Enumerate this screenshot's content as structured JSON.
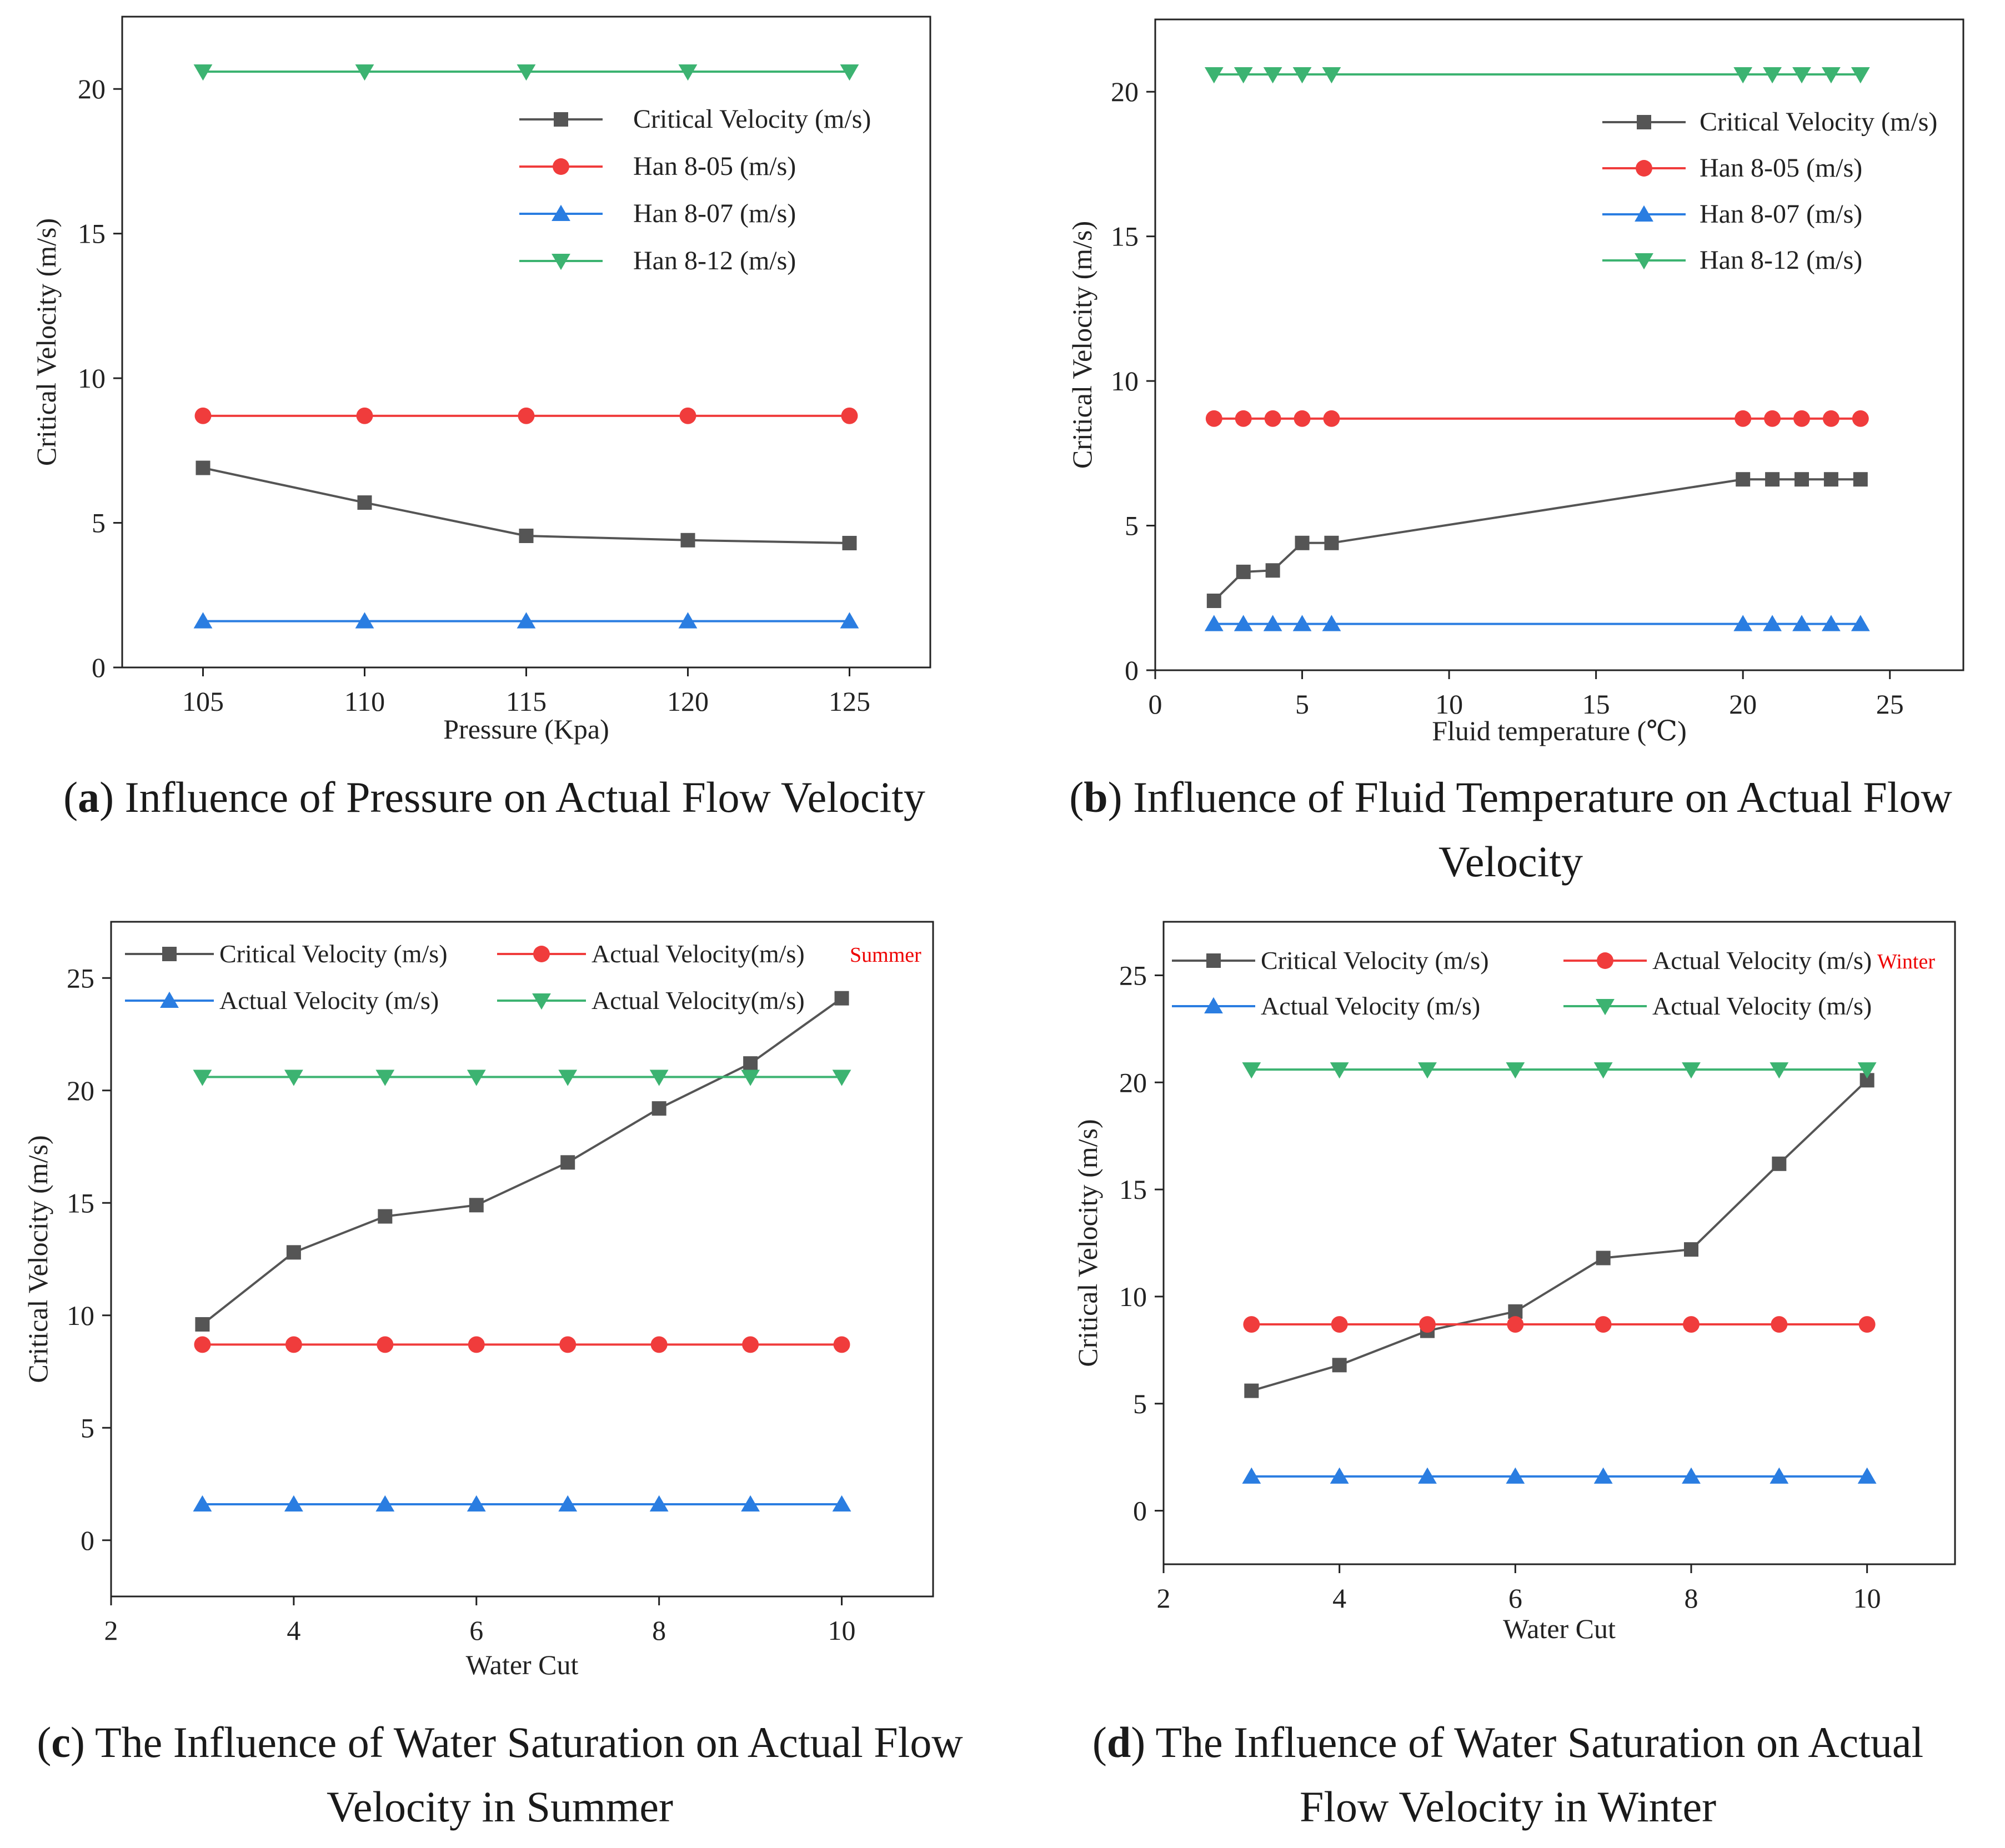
{
  "captions": [
    {
      "letter": "a",
      "line1": " Influence of Pressure on Actual Flow Velocity",
      "line2": ""
    },
    {
      "letter": "b",
      "line1": " Influence of Fluid Temperature on Actual Flow",
      "line2": "Velocity"
    },
    {
      "letter": "c",
      "line1": " The Influence of Water Saturation on Actual Flow",
      "line2": "Velocity in Summer"
    },
    {
      "letter": "d",
      "line1": " The Influence of Water Saturation on Actual",
      "line2": "Flow Velocity in Winter"
    }
  ],
  "colors": {
    "critical": "#555555",
    "han05": "#f03c3c",
    "han07": "#2a7de1",
    "han12": "#3cb371",
    "note": "#ee0000"
  },
  "chart_data": [
    {
      "type": "line",
      "xlabel": "Pressure (Kpa)",
      "ylabel": "Critical Velocity (m/s)",
      "xlim": [
        102.5,
        127.5
      ],
      "ylim": [
        0,
        22.5
      ],
      "xticks": [
        105,
        110,
        115,
        120,
        125
      ],
      "yticks": [
        0,
        5,
        10,
        15,
        20
      ],
      "legend": "top-right, single column",
      "note": "",
      "series": [
        {
          "name": "Critical Velocity (m/s)",
          "marker": "square",
          "color": "#555555",
          "x": [
            105,
            110,
            115,
            120,
            125
          ],
          "y": [
            6.9,
            5.7,
            4.55,
            4.4,
            4.3
          ]
        },
        {
          "name": "Han 8-05 (m/s)",
          "marker": "circle",
          "color": "#f03c3c",
          "x": [
            105,
            110,
            115,
            120,
            125
          ],
          "y": [
            8.7,
            8.7,
            8.7,
            8.7,
            8.7
          ]
        },
        {
          "name": "Han 8-07 (m/s)",
          "marker": "triangle-up",
          "color": "#2a7de1",
          "x": [
            105,
            110,
            115,
            120,
            125
          ],
          "y": [
            1.6,
            1.6,
            1.6,
            1.6,
            1.6
          ]
        },
        {
          "name": "Han 8-12 (m/s)",
          "marker": "triangle-down",
          "color": "#3cb371",
          "x": [
            105,
            110,
            115,
            120,
            125
          ],
          "y": [
            20.6,
            20.6,
            20.6,
            20.6,
            20.6
          ]
        }
      ]
    },
    {
      "type": "line",
      "xlabel": "Fluid temperature (℃)",
      "ylabel": "Critical Velocity (m/s)",
      "xlim": [
        0,
        27.5
      ],
      "ylim": [
        0,
        22.5
      ],
      "xticks": [
        0,
        5,
        10,
        15,
        20,
        25
      ],
      "yticks": [
        0,
        5,
        10,
        15,
        20
      ],
      "legend": "top-right, single column",
      "note": "",
      "series": [
        {
          "name": "Critical Velocity (m/s)",
          "marker": "square",
          "color": "#555555",
          "x": [
            2,
            3,
            4,
            5,
            6,
            20,
            21,
            22,
            23,
            24
          ],
          "y": [
            2.4,
            3.4,
            3.45,
            4.4,
            4.4,
            6.6,
            6.6,
            6.6,
            6.6,
            6.6
          ]
        },
        {
          "name": "Han 8-05 (m/s)",
          "marker": "circle",
          "color": "#f03c3c",
          "x": [
            2,
            3,
            4,
            5,
            6,
            20,
            21,
            22,
            23,
            24
          ],
          "y": [
            8.7,
            8.7,
            8.7,
            8.7,
            8.7,
            8.7,
            8.7,
            8.7,
            8.7,
            8.7
          ]
        },
        {
          "name": "Han 8-07 (m/s)",
          "marker": "triangle-up",
          "color": "#2a7de1",
          "x": [
            2,
            3,
            4,
            5,
            6,
            20,
            21,
            22,
            23,
            24
          ],
          "y": [
            1.6,
            1.6,
            1.6,
            1.6,
            1.6,
            1.6,
            1.6,
            1.6,
            1.6,
            1.6
          ]
        },
        {
          "name": "Han 8-12 (m/s)",
          "marker": "triangle-down",
          "color": "#3cb371",
          "x": [
            2,
            3,
            4,
            5,
            6,
            20,
            21,
            22,
            23,
            24
          ],
          "y": [
            20.6,
            20.6,
            20.6,
            20.6,
            20.6,
            20.6,
            20.6,
            20.6,
            20.6,
            20.6
          ]
        }
      ]
    },
    {
      "type": "line",
      "xlabel": "Water Cut",
      "ylabel": "Critical Velocity (m/s)",
      "xlim": [
        2,
        11
      ],
      "ylim": [
        -2.5,
        27.5
      ],
      "xticks": [
        2,
        4,
        6,
        8,
        10
      ],
      "yticks": [
        0,
        5,
        10,
        15,
        20,
        25
      ],
      "legend": "top, two columns",
      "note": "Summer",
      "series": [
        {
          "name": "Critical Velocity (m/s)",
          "marker": "square",
          "color": "#555555",
          "x": [
            3,
            4,
            5,
            6,
            7,
            8,
            9,
            10
          ],
          "y": [
            9.6,
            12.8,
            14.4,
            14.9,
            16.8,
            19.2,
            21.2,
            24.1
          ]
        },
        {
          "name": "Actual Velocity(m/s)",
          "marker": "circle",
          "color": "#f03c3c",
          "x": [
            3,
            4,
            5,
            6,
            7,
            8,
            9,
            10
          ],
          "y": [
            8.7,
            8.7,
            8.7,
            8.7,
            8.7,
            8.7,
            8.7,
            8.7
          ]
        },
        {
          "name": "Actual Velocity (m/s)",
          "marker": "triangle-up",
          "color": "#2a7de1",
          "x": [
            3,
            4,
            5,
            6,
            7,
            8,
            9,
            10
          ],
          "y": [
            1.6,
            1.6,
            1.6,
            1.6,
            1.6,
            1.6,
            1.6,
            1.6
          ]
        },
        {
          "name": "Actual Velocity(m/s)",
          "marker": "triangle-down",
          "color": "#3cb371",
          "x": [
            3,
            4,
            5,
            6,
            7,
            8,
            9,
            10
          ],
          "y": [
            20.6,
            20.6,
            20.6,
            20.6,
            20.6,
            20.6,
            20.6,
            20.6
          ]
        }
      ]
    },
    {
      "type": "line",
      "xlabel": "Water Cut",
      "ylabel": "Critical Velocity (m/s)",
      "xlim": [
        2,
        11
      ],
      "ylim": [
        -2.5,
        27.5
      ],
      "xticks": [
        2,
        4,
        6,
        8,
        10
      ],
      "yticks": [
        0,
        5,
        10,
        15,
        20,
        25
      ],
      "legend": "top, two columns",
      "note": "Winter",
      "series": [
        {
          "name": "Critical Velocity (m/s)",
          "marker": "square",
          "color": "#555555",
          "x": [
            3,
            4,
            5,
            6,
            7,
            8,
            9,
            10
          ],
          "y": [
            5.6,
            6.8,
            8.4,
            9.3,
            11.8,
            12.2,
            16.2,
            20.1
          ]
        },
        {
          "name": "Actual Velocity (m/s)",
          "marker": "circle",
          "color": "#f03c3c",
          "x": [
            3,
            4,
            5,
            6,
            7,
            8,
            9,
            10
          ],
          "y": [
            8.7,
            8.7,
            8.7,
            8.7,
            8.7,
            8.7,
            8.7,
            8.7
          ]
        },
        {
          "name": "Actual Velocity  (m/s)",
          "marker": "triangle-up",
          "color": "#2a7de1",
          "x": [
            3,
            4,
            5,
            6,
            7,
            8,
            9,
            10
          ],
          "y": [
            1.6,
            1.6,
            1.6,
            1.6,
            1.6,
            1.6,
            1.6,
            1.6
          ]
        },
        {
          "name": "Actual Velocity (m/s)",
          "marker": "triangle-down",
          "color": "#3cb371",
          "x": [
            3,
            4,
            5,
            6,
            7,
            8,
            9,
            10
          ],
          "y": [
            20.6,
            20.6,
            20.6,
            20.6,
            20.6,
            20.6,
            20.6,
            20.6
          ]
        }
      ]
    }
  ]
}
